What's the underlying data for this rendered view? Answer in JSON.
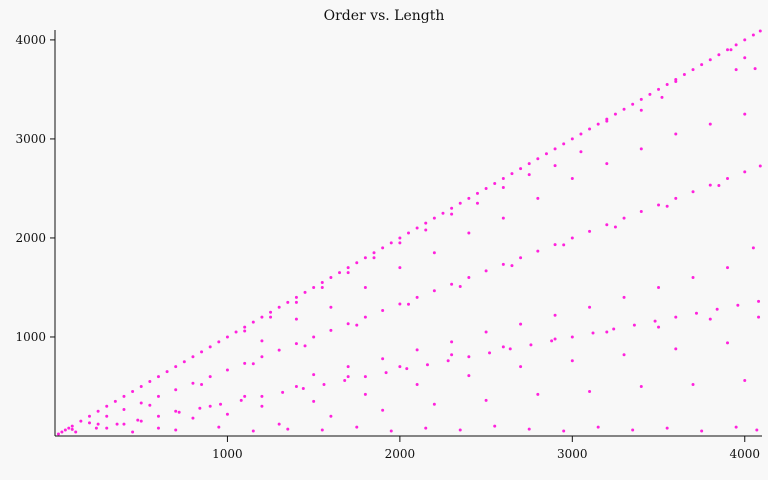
{
  "chart_data": {
    "type": "scatter",
    "title": "Order vs. Length",
    "xlabel": "",
    "ylabel": "",
    "xlim": [
      0,
      4100
    ],
    "ylim": [
      0,
      4100
    ],
    "x_ticks": [
      1000,
      2000,
      3000,
      4000
    ],
    "y_ticks": [
      1000,
      2000,
      3000,
      4000
    ],
    "x_tick_labels": [
      "1000",
      "2000",
      "3000",
      "4000"
    ],
    "y_tick_labels": [
      "1000",
      "2000",
      "3000",
      "4000"
    ],
    "grid": false,
    "legend": "none",
    "marker_color": "#ff22dd",
    "background_color": "#f8f8f8",
    "series": [
      {
        "points": [
          [
            20,
            20
          ],
          [
            40,
            40
          ],
          [
            60,
            60
          ],
          [
            80,
            80
          ],
          [
            100,
            100
          ],
          [
            150,
            150
          ],
          [
            200,
            200
          ],
          [
            250,
            250
          ],
          [
            300,
            300
          ],
          [
            350,
            350
          ],
          [
            400,
            400
          ],
          [
            450,
            450
          ],
          [
            500,
            500
          ],
          [
            550,
            550
          ],
          [
            600,
            600
          ],
          [
            650,
            650
          ],
          [
            700,
            700
          ],
          [
            750,
            750
          ],
          [
            800,
            800
          ],
          [
            850,
            850
          ],
          [
            900,
            900
          ],
          [
            950,
            950
          ],
          [
            1000,
            1000
          ],
          [
            1050,
            1050
          ],
          [
            1100,
            1100
          ],
          [
            1150,
            1150
          ],
          [
            1200,
            1200
          ],
          [
            1250,
            1250
          ],
          [
            1300,
            1300
          ],
          [
            1350,
            1350
          ],
          [
            1400,
            1400
          ],
          [
            1450,
            1450
          ],
          [
            1500,
            1500
          ],
          [
            1550,
            1550
          ],
          [
            1600,
            1600
          ],
          [
            1650,
            1650
          ],
          [
            1700,
            1700
          ],
          [
            1750,
            1750
          ],
          [
            1800,
            1800
          ],
          [
            1850,
            1850
          ],
          [
            1900,
            1900
          ],
          [
            1950,
            1950
          ],
          [
            2000,
            2000
          ],
          [
            2050,
            2050
          ],
          [
            2100,
            2100
          ],
          [
            2150,
            2150
          ],
          [
            2200,
            2200
          ],
          [
            2250,
            2250
          ],
          [
            2300,
            2300
          ],
          [
            2350,
            2350
          ],
          [
            2400,
            2400
          ],
          [
            2450,
            2450
          ],
          [
            2500,
            2500
          ],
          [
            2550,
            2550
          ],
          [
            2600,
            2600
          ],
          [
            2650,
            2650
          ],
          [
            2700,
            2700
          ],
          [
            2750,
            2750
          ],
          [
            2800,
            2800
          ],
          [
            2850,
            2850
          ],
          [
            2900,
            2900
          ],
          [
            2950,
            2950
          ],
          [
            3000,
            3000
          ],
          [
            3050,
            3050
          ],
          [
            3100,
            3100
          ],
          [
            3150,
            3150
          ],
          [
            3200,
            3200
          ],
          [
            3250,
            3250
          ],
          [
            3300,
            3300
          ],
          [
            3350,
            3350
          ],
          [
            3400,
            3400
          ],
          [
            3450,
            3450
          ],
          [
            3500,
            3500
          ],
          [
            3550,
            3550
          ],
          [
            3600,
            3600
          ],
          [
            3650,
            3650
          ],
          [
            3700,
            3700
          ],
          [
            3750,
            3750
          ],
          [
            3800,
            3800
          ],
          [
            3850,
            3850
          ],
          [
            3900,
            3900
          ],
          [
            3950,
            3950
          ],
          [
            4000,
            4000
          ],
          [
            4050,
            4050
          ],
          [
            4090,
            4090
          ],
          [
            100,
            67
          ],
          [
            200,
            133
          ],
          [
            300,
            200
          ],
          [
            400,
            267
          ],
          [
            500,
            333
          ],
          [
            600,
            400
          ],
          [
            700,
            467
          ],
          [
            800,
            533
          ],
          [
            900,
            600
          ],
          [
            1000,
            667
          ],
          [
            1100,
            733
          ],
          [
            1200,
            800
          ],
          [
            1300,
            867
          ],
          [
            1400,
            933
          ],
          [
            1500,
            1000
          ],
          [
            1600,
            1067
          ],
          [
            1700,
            1133
          ],
          [
            1800,
            1200
          ],
          [
            1900,
            1267
          ],
          [
            2000,
            1333
          ],
          [
            2100,
            1400
          ],
          [
            2200,
            1467
          ],
          [
            2300,
            1533
          ],
          [
            2400,
            1600
          ],
          [
            2500,
            1667
          ],
          [
            2600,
            1733
          ],
          [
            2700,
            1800
          ],
          [
            2800,
            1867
          ],
          [
            2900,
            1933
          ],
          [
            3000,
            2000
          ],
          [
            3100,
            2067
          ],
          [
            3200,
            2133
          ],
          [
            3300,
            2200
          ],
          [
            3400,
            2267
          ],
          [
            3500,
            2333
          ],
          [
            3600,
            2400
          ],
          [
            3700,
            2467
          ],
          [
            3800,
            2533
          ],
          [
            3900,
            2600
          ],
          [
            4000,
            2667
          ],
          [
            4090,
            2727
          ],
          [
            120,
            40
          ],
          [
            240,
            80
          ],
          [
            360,
            120
          ],
          [
            480,
            160
          ],
          [
            600,
            200
          ],
          [
            720,
            240
          ],
          [
            840,
            280
          ],
          [
            960,
            320
          ],
          [
            1080,
            360
          ],
          [
            1200,
            400
          ],
          [
            1320,
            440
          ],
          [
            1440,
            480
          ],
          [
            1560,
            520
          ],
          [
            1680,
            560
          ],
          [
            1800,
            600
          ],
          [
            1920,
            640
          ],
          [
            2040,
            680
          ],
          [
            2160,
            720
          ],
          [
            2280,
            760
          ],
          [
            2400,
            800
          ],
          [
            2520,
            840
          ],
          [
            2640,
            880
          ],
          [
            2760,
            920
          ],
          [
            2880,
            960
          ],
          [
            3000,
            1000
          ],
          [
            3120,
            1040
          ],
          [
            3240,
            1080
          ],
          [
            3360,
            1120
          ],
          [
            3480,
            1160
          ],
          [
            3600,
            1200
          ],
          [
            3720,
            1240
          ],
          [
            3840,
            1280
          ],
          [
            3960,
            1320
          ],
          [
            4080,
            1360
          ],
          [
            1200,
            960
          ],
          [
            1400,
            1180
          ],
          [
            1600,
            1300
          ],
          [
            1800,
            1500
          ],
          [
            2000,
            1700
          ],
          [
            2200,
            1850
          ],
          [
            2400,
            2050
          ],
          [
            2600,
            2200
          ],
          [
            2800,
            2400
          ],
          [
            3000,
            2600
          ],
          [
            3200,
            2750
          ],
          [
            3400,
            2900
          ],
          [
            3600,
            3050
          ],
          [
            3800,
            3150
          ],
          [
            4000,
            3250
          ],
          [
            1500,
            620
          ],
          [
            1700,
            700
          ],
          [
            1900,
            780
          ],
          [
            2100,
            870
          ],
          [
            2300,
            950
          ],
          [
            2500,
            1050
          ],
          [
            2700,
            1130
          ],
          [
            2900,
            1220
          ],
          [
            3100,
            1300
          ],
          [
            3300,
            1400
          ],
          [
            3500,
            1500
          ],
          [
            3700,
            1600
          ],
          [
            3900,
            1700
          ],
          [
            4050,
            1900
          ],
          [
            3920,
            3900
          ],
          [
            3950,
            3700
          ],
          [
            4000,
            3820
          ],
          [
            4060,
            3710
          ],
          [
            3600,
            3580
          ],
          [
            3520,
            3420
          ],
          [
            3400,
            3290
          ],
          [
            3200,
            3180
          ],
          [
            3050,
            2870
          ],
          [
            2900,
            2730
          ],
          [
            2750,
            2640
          ],
          [
            2600,
            2510
          ],
          [
            2450,
            2350
          ],
          [
            2300,
            2240
          ],
          [
            2150,
            2080
          ],
          [
            2000,
            1950
          ],
          [
            1850,
            1800
          ],
          [
            1700,
            1650
          ],
          [
            1550,
            1500
          ],
          [
            1400,
            1350
          ],
          [
            1250,
            1200
          ],
          [
            1100,
            1060
          ],
          [
            300,
            80
          ],
          [
            400,
            120
          ],
          [
            500,
            150
          ],
          [
            600,
            80
          ],
          [
            700,
            250
          ],
          [
            800,
            180
          ],
          [
            900,
            300
          ],
          [
            1000,
            220
          ],
          [
            1100,
            400
          ],
          [
            1200,
            300
          ],
          [
            1300,
            120
          ],
          [
            1400,
            500
          ],
          [
            1500,
            350
          ],
          [
            1600,
            200
          ],
          [
            1700,
            600
          ],
          [
            1800,
            420
          ],
          [
            1900,
            260
          ],
          [
            2000,
            700
          ],
          [
            2100,
            520
          ],
          [
            2200,
            320
          ],
          [
            2300,
            820
          ],
          [
            2400,
            610
          ],
          [
            2500,
            360
          ],
          [
            2600,
            900
          ],
          [
            2700,
            700
          ],
          [
            2800,
            420
          ],
          [
            2900,
            980
          ],
          [
            3000,
            760
          ],
          [
            3100,
            450
          ],
          [
            3200,
            1050
          ],
          [
            3300,
            820
          ],
          [
            3400,
            500
          ],
          [
            3500,
            1100
          ],
          [
            3600,
            880
          ],
          [
            3700,
            520
          ],
          [
            3800,
            1180
          ],
          [
            3900,
            940
          ],
          [
            4000,
            560
          ],
          [
            4080,
            1200
          ],
          [
            450,
            40
          ],
          [
            700,
            60
          ],
          [
            950,
            90
          ],
          [
            1150,
            50
          ],
          [
            1350,
            70
          ],
          [
            1550,
            60
          ],
          [
            1750,
            90
          ],
          [
            1950,
            50
          ],
          [
            2150,
            80
          ],
          [
            2350,
            60
          ],
          [
            2550,
            100
          ],
          [
            2750,
            70
          ],
          [
            2950,
            50
          ],
          [
            3150,
            90
          ],
          [
            3350,
            60
          ],
          [
            3550,
            80
          ],
          [
            3750,
            50
          ],
          [
            3950,
            90
          ],
          [
            4070,
            60
          ],
          [
            250,
            120
          ],
          [
            550,
            310
          ],
          [
            850,
            520
          ],
          [
            1150,
            730
          ],
          [
            1450,
            910
          ],
          [
            1750,
            1120
          ],
          [
            2050,
            1330
          ],
          [
            2350,
            1510
          ],
          [
            2650,
            1720
          ],
          [
            2950,
            1930
          ],
          [
            3250,
            2110
          ],
          [
            3550,
            2320
          ],
          [
            3850,
            2530
          ]
        ]
      }
    ]
  }
}
